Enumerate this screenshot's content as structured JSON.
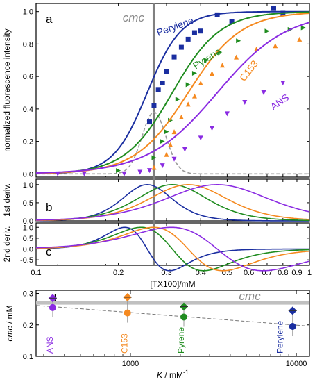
{
  "colors": {
    "perylene": "#1a2ea0",
    "pyrene": "#1f8c1f",
    "c153": "#f5891f",
    "ans": "#8a2be2",
    "cmc_line": "#808080",
    "cmc_dashed": "#999999",
    "zero_line": "#888888"
  },
  "chart_data": [
    {
      "panel": "a",
      "type": "line+scatter",
      "xscale": "log",
      "xlim": [
        0.1,
        1
      ],
      "ylim": [
        -0.02,
        1.05
      ],
      "ylabel": "normalized fluorescence intensity",
      "yticks": [
        "0.0",
        "0.2",
        "0.4",
        "0.6",
        "0.8",
        "1.0"
      ],
      "cmc_x": 0.27,
      "cmc_label": "cmc",
      "series": [
        {
          "name": "Perylene",
          "color_key": "perylene",
          "marker": "square",
          "fit": {
            "x0": 0.255,
            "n": 7.0
          },
          "points": [
            [
              0.26,
              0.32
            ],
            [
              0.27,
              0.42
            ],
            [
              0.28,
              0.52
            ],
            [
              0.29,
              0.56
            ],
            [
              0.3,
              0.63
            ],
            [
              0.32,
              0.72
            ],
            [
              0.34,
              0.78
            ],
            [
              0.36,
              0.83
            ],
            [
              0.38,
              0.87
            ],
            [
              0.4,
              0.88
            ],
            [
              0.46,
              0.98
            ],
            [
              0.52,
              0.94
            ],
            [
              0.74,
              1.02
            ],
            [
              0.8,
              0.99
            ]
          ]
        },
        {
          "name": "Pyrene",
          "color_key": "pyrene",
          "marker": "triangle-right",
          "fit": {
            "x0": 0.315,
            "n": 5.0
          },
          "points": [
            [
              0.2,
              0.02
            ],
            [
              0.27,
              0.1
            ],
            [
              0.29,
              0.2
            ],
            [
              0.3,
              0.26
            ],
            [
              0.31,
              0.33
            ],
            [
              0.33,
              0.46
            ],
            [
              0.36,
              0.55
            ],
            [
              0.38,
              0.62
            ],
            [
              0.42,
              0.7
            ],
            [
              0.47,
              0.75
            ],
            [
              0.55,
              0.82
            ],
            [
              0.7,
              0.88
            ],
            [
              0.85,
              0.89
            ],
            [
              0.95,
              0.9
            ]
          ]
        },
        {
          "name": "C153",
          "color_key": "c153",
          "marker": "triangle-up",
          "fit": {
            "x0": 0.36,
            "n": 4.5
          },
          "points": [
            [
              0.27,
              0.04
            ],
            [
              0.3,
              0.12
            ],
            [
              0.31,
              0.18
            ],
            [
              0.32,
              0.26
            ],
            [
              0.34,
              0.35
            ],
            [
              0.36,
              0.43
            ],
            [
              0.38,
              0.48
            ],
            [
              0.4,
              0.56
            ],
            [
              0.44,
              0.62
            ],
            [
              0.48,
              0.67
            ],
            [
              0.54,
              0.72
            ],
            [
              0.64,
              0.77
            ],
            [
              0.75,
              0.79
            ],
            [
              0.92,
              0.83
            ]
          ]
        },
        {
          "name": "ANS",
          "color_key": "ans",
          "marker": "triangle-down",
          "fit": {
            "x0": 0.46,
            "n": 3.4
          },
          "points": [
            [
              0.12,
              0.0
            ],
            [
              0.15,
              0.0
            ],
            [
              0.21,
              0.0
            ],
            [
              0.24,
              0.01
            ],
            [
              0.26,
              0.02
            ],
            [
              0.29,
              0.05
            ],
            [
              0.32,
              0.09
            ],
            [
              0.35,
              0.15
            ],
            [
              0.4,
              0.22
            ],
            [
              0.44,
              0.28
            ],
            [
              0.5,
              0.37
            ],
            [
              0.58,
              0.44
            ],
            [
              0.68,
              0.5
            ],
            [
              0.8,
              0.56
            ]
          ]
        }
      ],
      "dashed": {
        "center": 0.27,
        "width": 0.34,
        "peak": 0.38
      }
    },
    {
      "panel": "b",
      "type": "line",
      "ylabel": "1st deriv.",
      "ylim": [
        0,
        1.15
      ],
      "yticks": [
        "0.0",
        "0.5",
        "1.0"
      ],
      "peaks": {
        "perylene": 0.255,
        "pyrene": 0.3,
        "c153": 0.315,
        "ans": 0.34
      }
    },
    {
      "panel": "c",
      "type": "line",
      "ylabel": "2nd deriv.",
      "ylim": [
        -0.75,
        1.2
      ],
      "yticks": [
        "1.0",
        "0.5",
        "0.0",
        "-0.5"
      ],
      "xlabel": "[TX100]/mM",
      "xticks": [
        "0.1",
        "0.2",
        "0.3",
        "0.4",
        "0.5",
        "0.6",
        "0.7",
        "0.8",
        "0.9",
        "1"
      ]
    },
    {
      "panel": "d",
      "type": "scatter",
      "xscale": "log",
      "xlim": [
        270,
        12000
      ],
      "ylim": [
        0.1,
        0.31
      ],
      "ylabel": "cmc / mM",
      "ylabel_italic": "cmc",
      "ylabel_unit": " / mM",
      "xlabel_italic": "K",
      "xlabel_unit": " / mM",
      "xlabel_sup": "-1",
      "xticks": [
        "1000",
        "10000"
      ],
      "yticks": [
        "0.1",
        "0.2",
        "0.3"
      ],
      "cmc_value": 0.27,
      "cmc_label": "cmc",
      "points": [
        {
          "name": "ANS",
          "color_key": "ans",
          "K": 340,
          "deriv": 0.285,
          "fit": 0.255
        },
        {
          "name": "C153",
          "color_key": "c153",
          "K": 960,
          "deriv": 0.288,
          "fit": 0.238
        },
        {
          "name": "Pyrene",
          "color_key": "pyrene",
          "K": 2100,
          "deriv": 0.258,
          "fit": 0.225
        },
        {
          "name": "Perylene",
          "color_key": "perylene",
          "K": 9500,
          "deriv": 0.245,
          "fit": 0.195
        }
      ],
      "trend": {
        "from": [
          270,
          0.262
        ],
        "to": [
          12000,
          0.196
        ]
      }
    }
  ]
}
